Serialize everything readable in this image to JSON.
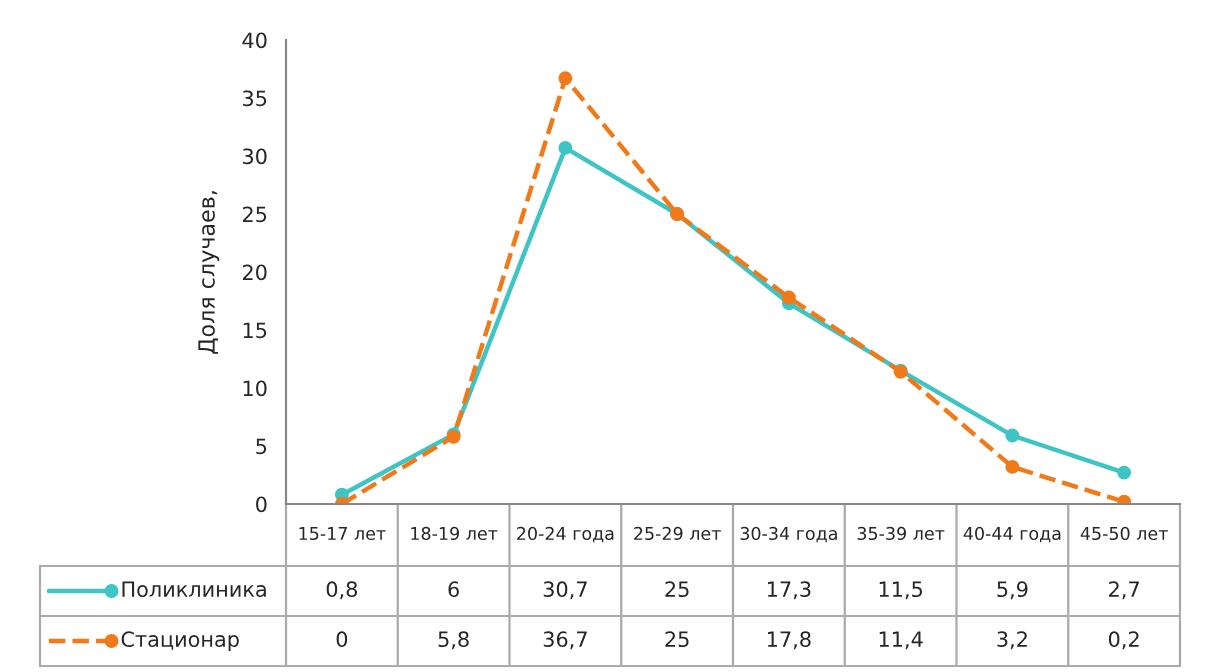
{
  "chart_data": {
    "type": "line",
    "ylabel": "Доля случаев,",
    "categories": [
      "15-17 лет",
      "18-19 лет",
      "20-24 года",
      "25-29 лет",
      "30-34 года",
      "35-39 лет",
      "40-44 года",
      "45-50 лет"
    ],
    "series": [
      {
        "name": "Поликлиника",
        "color": "#3fc4c4",
        "values": [
          0.8,
          6,
          30.7,
          25,
          17.3,
          11.5,
          5.9,
          2.7
        ],
        "value_labels": [
          "0,8",
          "6",
          "30,7",
          "25",
          "17,3",
          "11,5",
          "5,9",
          "2,7"
        ],
        "line_style": "solid"
      },
      {
        "name": "Стационар",
        "color": "#f07a1a",
        "values": [
          0,
          5.8,
          36.7,
          25,
          17.8,
          11.4,
          3.2,
          0.2
        ],
        "value_labels": [
          "0",
          "5,8",
          "36,7",
          "25",
          "17,8",
          "11,4",
          "3,2",
          "0,2"
        ],
        "line_style": "dashed"
      }
    ],
    "ylim": [
      0,
      40
    ],
    "yticks": [
      0,
      5,
      10,
      15,
      20,
      25,
      30,
      35,
      40
    ],
    "grid": false,
    "legend": "bottom",
    "marker": "circle"
  }
}
